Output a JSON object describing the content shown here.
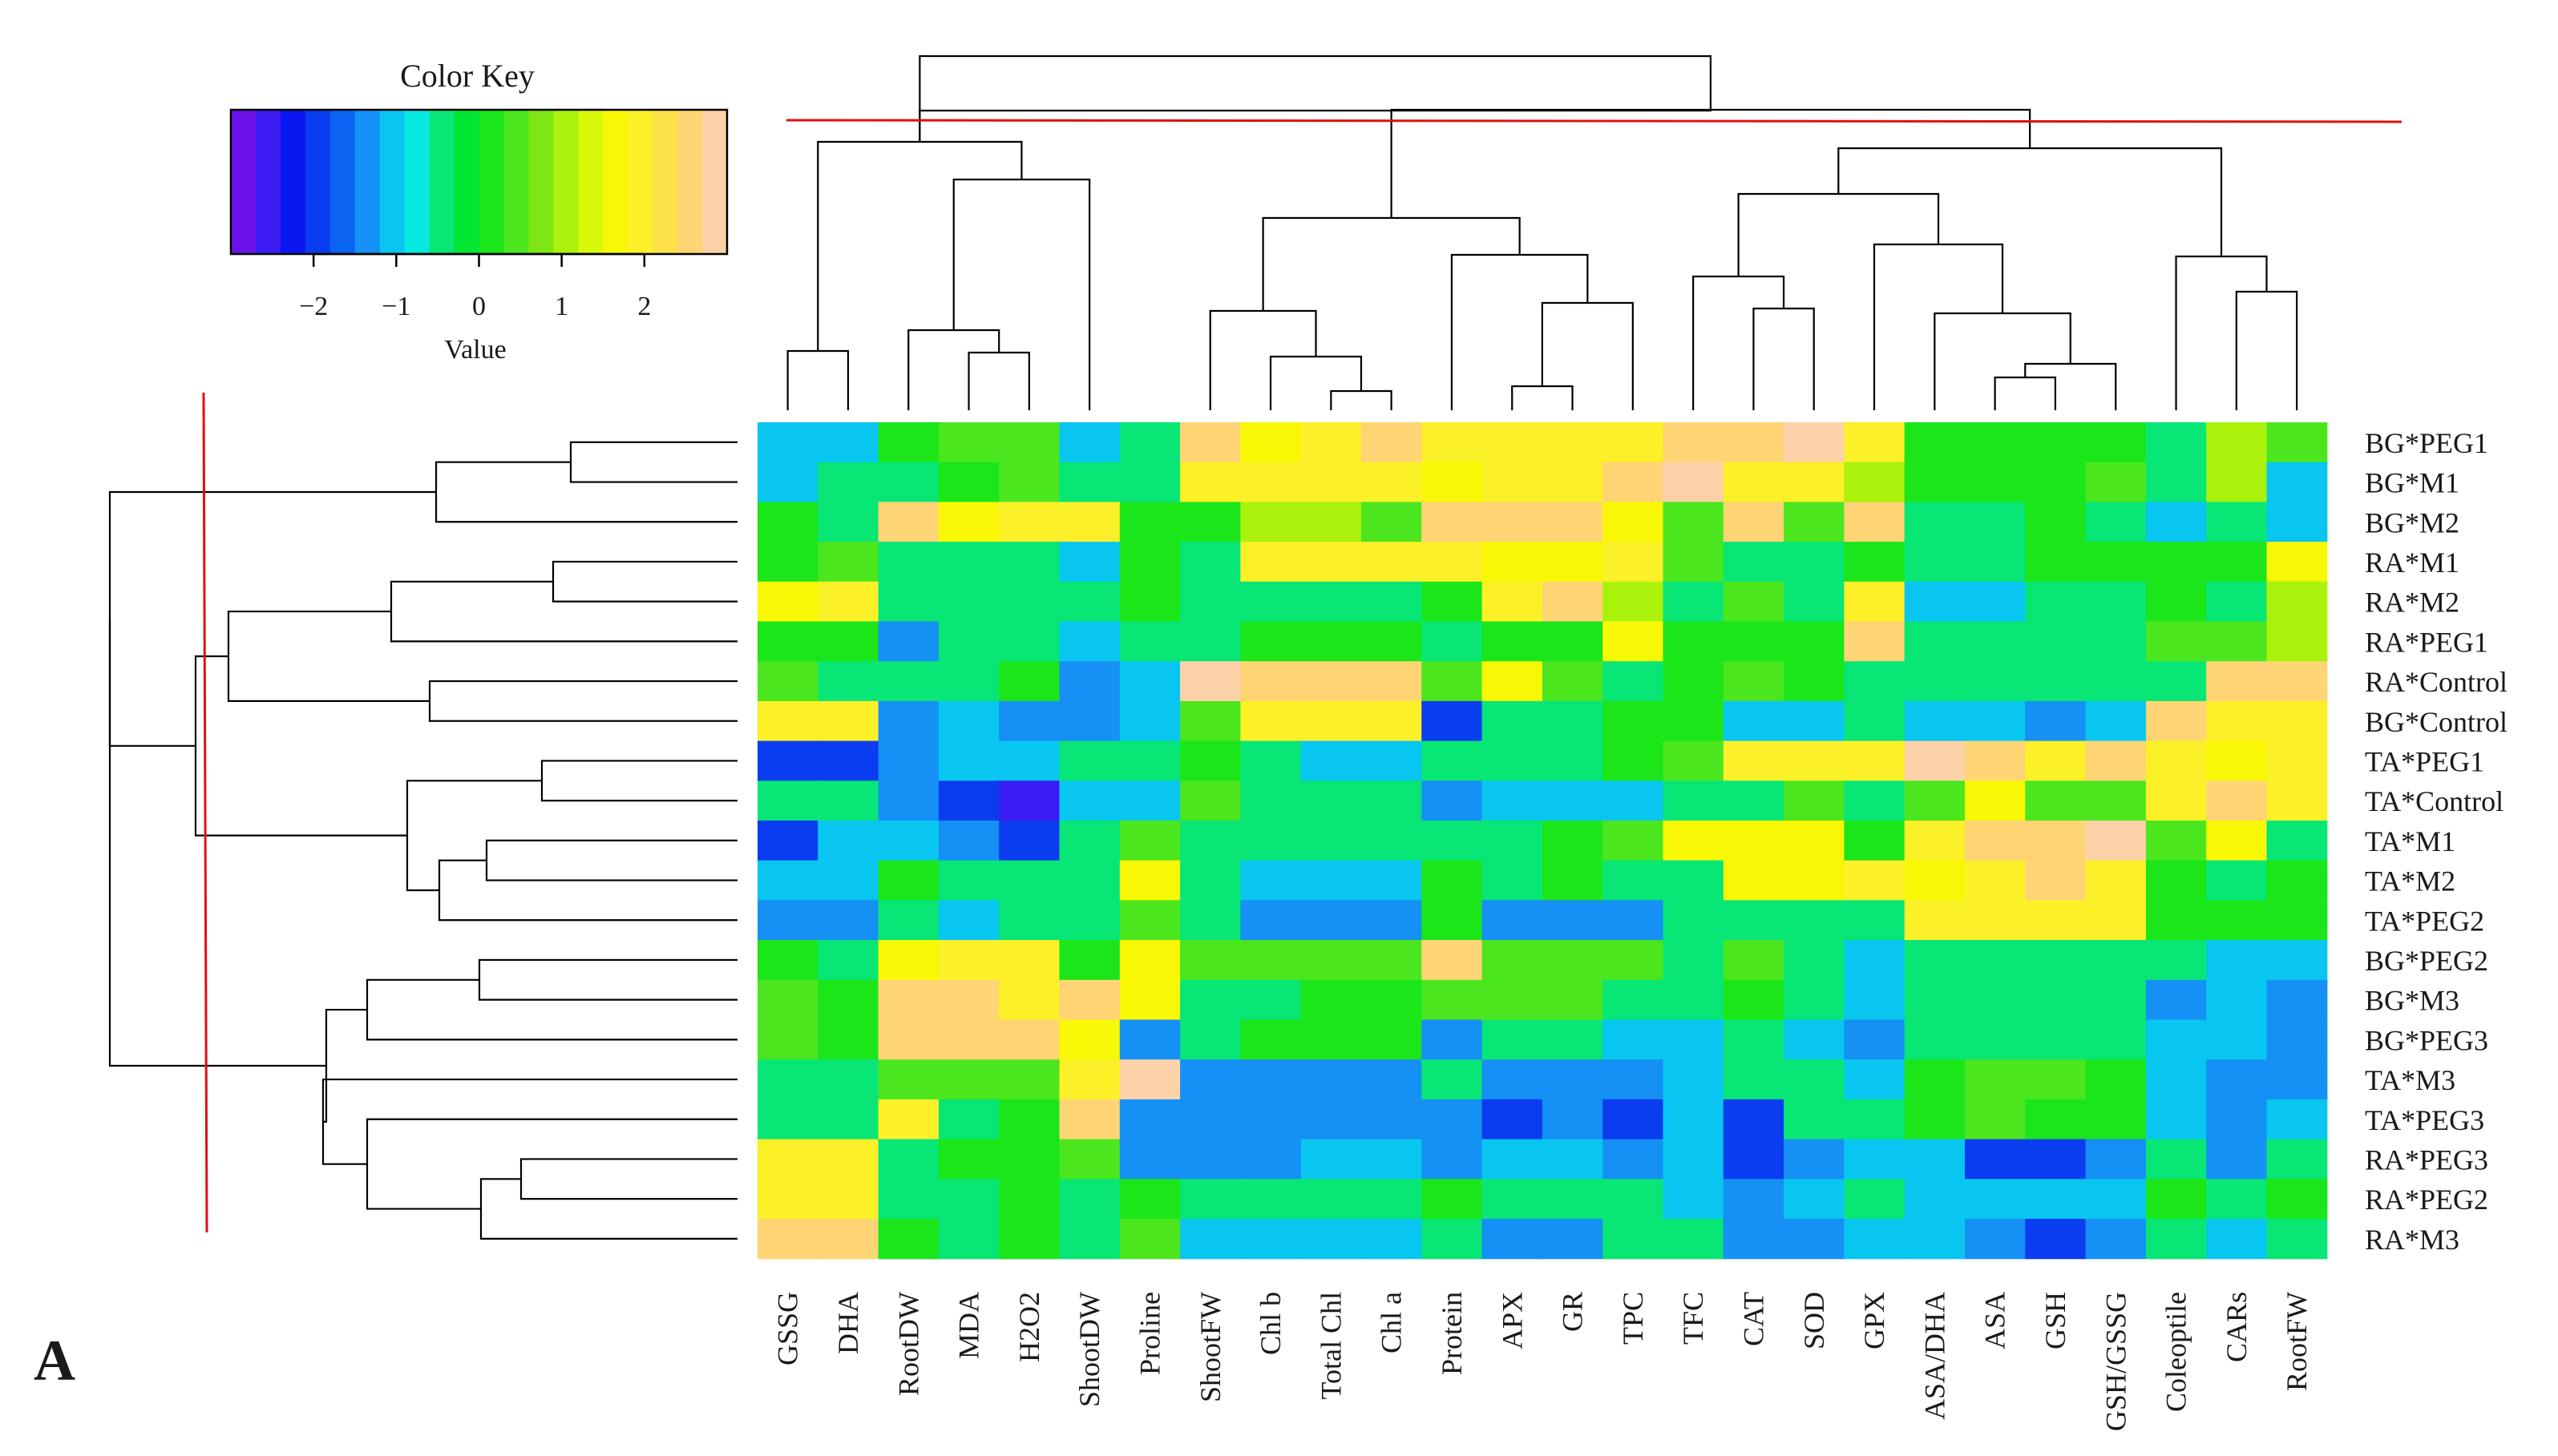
{
  "figure_label": "A",
  "colors": {
    "cut_line": "#e01010",
    "tree": "#000000"
  },
  "chart_data": {
    "type": "heatmap",
    "title": "",
    "color_key": {
      "title": "Color Key",
      "xlabel": "Value",
      "range": [
        -3,
        3
      ],
      "ticks": [
        -2,
        -1,
        0,
        1,
        2
      ],
      "tick_labels": [
        "−2",
        "−1",
        "0",
        "1",
        "2"
      ],
      "colors": [
        "#6a12e8",
        "#3b1cf2",
        "#0a16f0",
        "#0a3cf0",
        "#0b63f2",
        "#1590f4",
        "#08c6f0",
        "#07e8e0",
        "#08e676",
        "#00e632",
        "#1ae61a",
        "#4ce61e",
        "#7ee614",
        "#aaf20c",
        "#d8f80a",
        "#f8f806",
        "#fcf028",
        "#fce048",
        "#fed475",
        "#fed2a8"
      ]
    },
    "columns": [
      "GSSG",
      "DHA",
      "RootDW",
      "MDA",
      "H2O2",
      "ShootDW",
      "Proline",
      "ShootFW",
      "Chl b",
      "Total Chl",
      "Chl a",
      "Protein",
      "APX",
      "GR",
      "TPC",
      "TFC",
      "CAT",
      "SOD",
      "GPX",
      "ASA/DHA",
      "ASA",
      "GSH",
      "GSH/GSSG",
      "Coleoptile",
      "CARs",
      "RootFW"
    ],
    "rows": [
      "BG*PEG1",
      "BG*M1",
      "BG*M2",
      "RA*M1",
      "RA*M2",
      "RA*PEG1",
      "RA*Control",
      "BG*Control",
      "TA*PEG1",
      "TA*Control",
      "TA*M1",
      "TA*M2",
      "TA*PEG2",
      "BG*PEG2",
      "BG*M3",
      "BG*PEG3",
      "TA*M3",
      "TA*PEG3",
      "RA*PEG3",
      "RA*PEG2",
      "RA*M3"
    ],
    "values": [
      [
        -1,
        -1,
        0,
        0.5,
        0.5,
        -1,
        -0.5,
        2.5,
        1.5,
        2,
        2.5,
        2,
        2,
        2,
        2,
        2.5,
        2.5,
        2.8,
        2,
        0,
        0,
        0,
        0,
        -0.5,
        1,
        0.5
      ],
      [
        -1,
        -0.5,
        -0.5,
        0,
        0.5,
        -0.5,
        -0.5,
        2,
        2,
        2,
        2,
        1.5,
        2,
        2,
        2.5,
        2.8,
        2,
        2,
        1,
        0,
        0,
        0,
        0.5,
        -0.5,
        1,
        -1
      ],
      [
        0,
        -0.5,
        2.5,
        1.5,
        2,
        2,
        0,
        0,
        1,
        1,
        0.5,
        2.5,
        2.5,
        2.5,
        1.5,
        0.5,
        2.5,
        0.5,
        2.5,
        -0.5,
        -0.5,
        0,
        -0.5,
        -1,
        -0.5,
        -1
      ],
      [
        0,
        0.5,
        -0.5,
        -0.5,
        -0.5,
        -1,
        0,
        -0.5,
        2,
        2,
        2,
        2,
        1.5,
        1.5,
        2,
        0.5,
        -0.5,
        -0.5,
        0,
        -0.5,
        -0.5,
        0,
        0,
        0,
        0,
        1.5
      ],
      [
        1.5,
        2,
        -0.5,
        -0.5,
        -0.5,
        -0.5,
        0,
        -0.5,
        -0.5,
        -0.5,
        -0.5,
        0,
        2,
        2.5,
        1,
        -0.5,
        0.5,
        -0.5,
        2,
        -1,
        -1,
        -0.5,
        -0.5,
        0,
        -0.5,
        1
      ],
      [
        0,
        0,
        -1.5,
        -0.5,
        -0.5,
        -1,
        -0.5,
        -0.5,
        0,
        0,
        0,
        -0.5,
        0,
        0,
        1.5,
        0,
        0,
        0,
        2.5,
        -0.5,
        -0.5,
        -0.5,
        -0.5,
        0.5,
        0.5,
        1
      ],
      [
        0.5,
        -0.5,
        -0.5,
        -0.5,
        0,
        -1.5,
        -1,
        2.8,
        2.5,
        2.5,
        2.5,
        0.5,
        1.5,
        0.5,
        -0.5,
        0,
        0.5,
        0,
        -0.5,
        -0.5,
        -0.5,
        -0.5,
        -0.5,
        -0.5,
        2.5,
        2.5
      ],
      [
        2,
        2,
        -1.5,
        -1,
        -1.5,
        -1.5,
        -1,
        0.5,
        2,
        2,
        2,
        -2,
        -0.5,
        -0.5,
        0,
        0,
        -1,
        -1,
        -0.5,
        -1,
        -1,
        -1.5,
        -1,
        2.5,
        2,
        2
      ],
      [
        -2,
        -2,
        -1.5,
        -1,
        -1,
        -0.5,
        -0.5,
        0,
        -0.5,
        -1,
        -1,
        -0.5,
        -0.5,
        -0.5,
        0,
        0.5,
        2,
        2,
        2,
        2.8,
        2.5,
        2,
        2.5,
        2,
        1.5,
        2
      ],
      [
        -0.5,
        -0.5,
        -1.5,
        -2,
        -2.5,
        -1,
        -1,
        0.5,
        -0.5,
        -0.5,
        -0.5,
        -1.5,
        -1,
        -1,
        -1,
        -0.5,
        -0.5,
        0.5,
        -0.5,
        0.5,
        1.5,
        0.5,
        0.5,
        2,
        2.5,
        2
      ],
      [
        -2,
        -1,
        -1,
        -1.5,
        -2,
        -0.5,
        0.5,
        -0.5,
        -0.5,
        -0.5,
        -0.5,
        -0.5,
        -0.5,
        0,
        0.5,
        1.5,
        1.5,
        1.5,
        0,
        2,
        2.5,
        2.5,
        2.8,
        0.5,
        1.5,
        -0.5
      ],
      [
        -1,
        -1,
        0,
        -0.5,
        -0.5,
        -0.5,
        1.5,
        -0.5,
        -1,
        -1,
        -1,
        0,
        -0.5,
        0,
        -0.5,
        -0.5,
        1.5,
        1.5,
        2,
        1.5,
        2,
        2.5,
        2,
        0,
        -0.5,
        0
      ],
      [
        -1.5,
        -1.5,
        -0.5,
        -1,
        -0.5,
        -0.5,
        0.5,
        -0.5,
        -1.5,
        -1.5,
        -1.5,
        0,
        -1.5,
        -1.5,
        -1.5,
        -0.5,
        -0.5,
        -0.5,
        -0.5,
        2,
        2,
        2,
        2,
        0,
        0,
        0
      ],
      [
        0,
        -0.5,
        1.5,
        2,
        2,
        0,
        1.5,
        0.5,
        0.5,
        0.5,
        0.5,
        2.5,
        0.5,
        0.5,
        0.5,
        -0.5,
        0.5,
        -0.5,
        -1,
        -0.5,
        -0.5,
        -0.5,
        -0.5,
        -0.5,
        -1,
        -1
      ],
      [
        0.5,
        0,
        2.5,
        2.5,
        2,
        2.5,
        1.5,
        -0.5,
        -0.5,
        0,
        0,
        0.5,
        0.5,
        0.5,
        -0.5,
        -0.5,
        0,
        -0.5,
        -1,
        -0.5,
        -0.5,
        -0.5,
        -0.5,
        -1.5,
        -1,
        -1.5
      ],
      [
        0.5,
        0,
        2.5,
        2.5,
        2.5,
        1.5,
        -1.5,
        -0.5,
        0,
        0,
        0,
        -1.5,
        -0.5,
        -0.5,
        -1,
        -1,
        -0.5,
        -1,
        -1.5,
        -0.5,
        -0.5,
        -0.5,
        -0.5,
        -1,
        -1,
        -1.5
      ],
      [
        -0.5,
        -0.5,
        0.5,
        0.5,
        0.5,
        2,
        2.8,
        -1.5,
        -1.5,
        -1.5,
        -1.5,
        -0.5,
        -1.5,
        -1.5,
        -1.5,
        -1,
        -0.5,
        -0.5,
        -1,
        0,
        0.5,
        0.5,
        0,
        -1,
        -1.5,
        -1.5
      ],
      [
        -0.5,
        -0.5,
        2,
        -0.5,
        0,
        2.5,
        -1.5,
        -1.5,
        -1.5,
        -1.5,
        -1.5,
        -1.5,
        -2,
        -1.5,
        -2,
        -1,
        -2,
        -0.5,
        -0.5,
        0,
        0.5,
        0,
        0,
        -1,
        -1.5,
        -1
      ],
      [
        2,
        2,
        -0.5,
        0,
        0,
        0.5,
        -1.5,
        -1.5,
        -1.5,
        -1,
        -1,
        -1.5,
        -1,
        -1,
        -1.5,
        -1,
        -2,
        -1.5,
        -1,
        -1,
        -2,
        -2,
        -1.5,
        -0.5,
        -1.5,
        -0.5
      ],
      [
        2,
        2,
        -0.5,
        -0.5,
        0,
        -0.5,
        0,
        -0.5,
        -0.5,
        -0.5,
        -0.5,
        0,
        -0.5,
        -0.5,
        -0.5,
        -1,
        -1.5,
        -1,
        -0.5,
        -1,
        -1,
        -1,
        -1,
        0,
        -0.5,
        0
      ],
      [
        2.5,
        2.5,
        0,
        -0.5,
        0,
        -0.5,
        0.5,
        -1,
        -1,
        -1,
        -1,
        -0.5,
        -1.5,
        -1.5,
        -0.5,
        -0.5,
        -1.5,
        -1.5,
        -1,
        -1,
        -1.5,
        -2,
        -1.5,
        -0.5,
        -1,
        -0.5
      ]
    ]
  }
}
